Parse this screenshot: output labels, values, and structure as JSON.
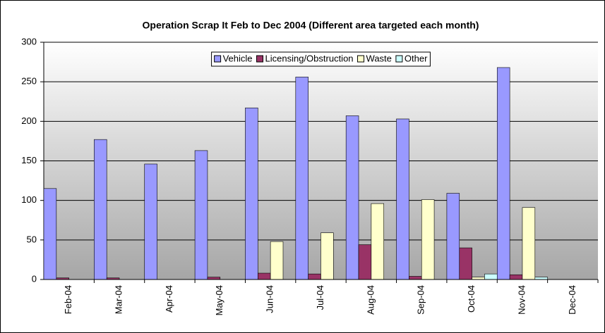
{
  "chart_data": {
    "type": "bar",
    "title": "Operation Scrap It Feb to Dec 2004 (Different area targeted each month)",
    "categories": [
      "Feb-04",
      "Mar-04",
      "Apr-04",
      "May-04",
      "Jun-04",
      "Jul-04",
      "Aug-04",
      "Sep-04",
      "Oct-04",
      "Nov-04",
      "Dec-04"
    ],
    "series": [
      {
        "name": "Vehicle",
        "color": "#9999ff",
        "values": [
          115,
          177,
          146,
          163,
          217,
          256,
          207,
          203,
          109,
          268,
          0
        ]
      },
      {
        "name": "Licensing/Obstruction",
        "color": "#993366",
        "values": [
          2,
          2,
          0,
          3,
          8,
          7,
          44,
          4,
          40,
          6,
          0
        ]
      },
      {
        "name": "Waste",
        "color": "#ffffcc",
        "values": [
          0,
          0,
          0,
          0,
          48,
          59,
          96,
          101,
          3,
          91,
          0
        ]
      },
      {
        "name": "Other",
        "color": "#ccffff",
        "values": [
          0,
          0,
          0,
          0,
          0,
          0,
          0,
          0,
          7,
          3,
          0
        ]
      }
    ],
    "ylim": [
      0,
      300
    ],
    "yticks": [
      0,
      50,
      100,
      150,
      200,
      250,
      300
    ],
    "grid": true,
    "legend": "top"
  }
}
